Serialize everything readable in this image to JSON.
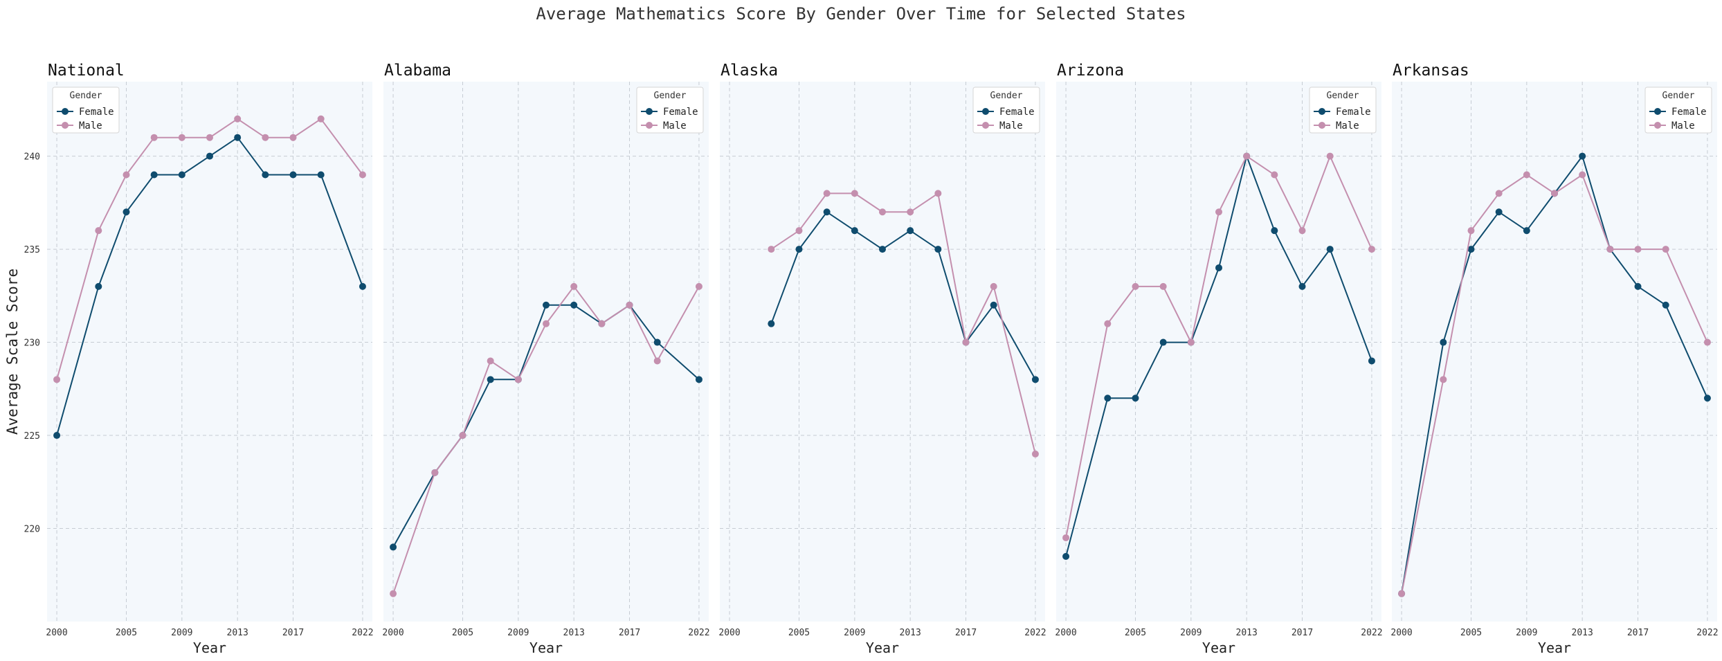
{
  "chart_data": {
    "type": "line",
    "title": "Average Mathematics Score By Gender Over Time for Selected States",
    "ylabel": "Average Scale Score",
    "xlabel": "Year",
    "ylim": [
      215,
      244
    ],
    "xlim": [
      1999.3,
      2022.7
    ],
    "yticks": [
      220,
      225,
      230,
      235,
      240
    ],
    "xticks": [
      2000,
      2005,
      2009,
      2013,
      2017,
      2022
    ],
    "grid": true,
    "legend_title": "Gender",
    "colors": {
      "Female": "#0f4c6e",
      "Male": "#c48fae"
    },
    "years": [
      2000,
      2003,
      2005,
      2007,
      2009,
      2011,
      2013,
      2015,
      2017,
      2019,
      2022
    ],
    "panels": [
      {
        "title": "National",
        "legend_position": "upper-left",
        "series": [
          {
            "name": "Female",
            "values": [
              225,
              233,
              237,
              239,
              239,
              240,
              241,
              239,
              239,
              239,
              233
            ]
          },
          {
            "name": "Male",
            "values": [
              228,
              236,
              239,
              241,
              241,
              241,
              242,
              241,
              241,
              242,
              239
            ]
          }
        ]
      },
      {
        "title": "Alabama",
        "legend_position": "upper-right",
        "series": [
          {
            "name": "Female",
            "values": [
              219,
              223,
              225,
              228,
              228,
              232,
              232,
              231,
              232,
              230,
              228
            ]
          },
          {
            "name": "Male",
            "values": [
              216.5,
              223,
              225,
              229,
              228,
              231,
              233,
              231,
              232,
              229,
              233
            ]
          }
        ]
      },
      {
        "title": "Alaska",
        "legend_position": "upper-right",
        "series": [
          {
            "name": "Female",
            "values": [
              null,
              231,
              235,
              237,
              236,
              235,
              236,
              235,
              230,
              232,
              228
            ]
          },
          {
            "name": "Male",
            "values": [
              null,
              235,
              236,
              238,
              238,
              237,
              237,
              238,
              230,
              233,
              224
            ]
          }
        ]
      },
      {
        "title": "Arizona",
        "legend_position": "upper-right",
        "series": [
          {
            "name": "Female",
            "values": [
              218.5,
              227,
              227,
              230,
              230,
              234,
              240,
              236,
              233,
              235,
              229
            ]
          },
          {
            "name": "Male",
            "values": [
              219.5,
              231,
              233,
              233,
              230,
              237,
              240,
              239,
              236,
              240,
              235
            ]
          }
        ]
      },
      {
        "title": "Arkansas",
        "legend_position": "upper-right",
        "series": [
          {
            "name": "Female",
            "values": [
              216.5,
              230,
              235,
              237,
              236,
              238,
              240,
              235,
              233,
              232,
              227
            ]
          },
          {
            "name": "Male",
            "values": [
              216.5,
              228,
              236,
              238,
              239,
              238,
              239,
              235,
              235,
              235,
              230
            ]
          }
        ]
      }
    ]
  }
}
